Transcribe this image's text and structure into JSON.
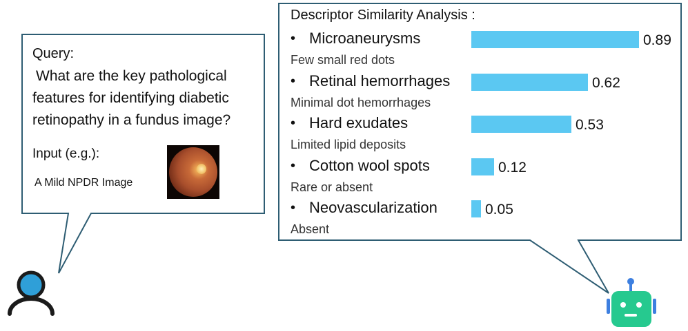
{
  "query": {
    "label": "Query:",
    "lines": [
      "What are the key pathological",
      "features for identifying diabetic",
      "retinopathy in a fundus image?"
    ]
  },
  "input": {
    "label": "Input (e.g.):",
    "sample_label": "A Mild NPDR Image"
  },
  "analysis": {
    "title": "Descriptor Similarity Analysis :",
    "bullet": "•",
    "accent_color": "#5bc8f2"
  },
  "chart_data": {
    "type": "bar",
    "orientation": "horizontal",
    "title": "Descriptor Similarity Analysis :",
    "categories": [
      "Microaneurysms",
      "Retinal hemorrhages",
      "Hard exudates",
      "Cotton wool spots",
      "Neovascularization"
    ],
    "descriptions": [
      "Few small red dots",
      "Minimal dot hemorrhages",
      "Limited lipid deposits",
      "Rare or absent",
      "Absent"
    ],
    "values": [
      0.89,
      0.62,
      0.53,
      0.12,
      0.05
    ],
    "value_labels": [
      "0.89",
      "0.62",
      "0.53",
      "0.12",
      "0.05"
    ],
    "xlim": [
      0,
      0.89
    ],
    "bar_color": "#5bc8f2"
  },
  "icons": {
    "user": "user-icon",
    "robot": "robot-icon",
    "retina": "fundus-image",
    "user_color": "#2f9fd8",
    "robot_color": "#26c98f"
  }
}
